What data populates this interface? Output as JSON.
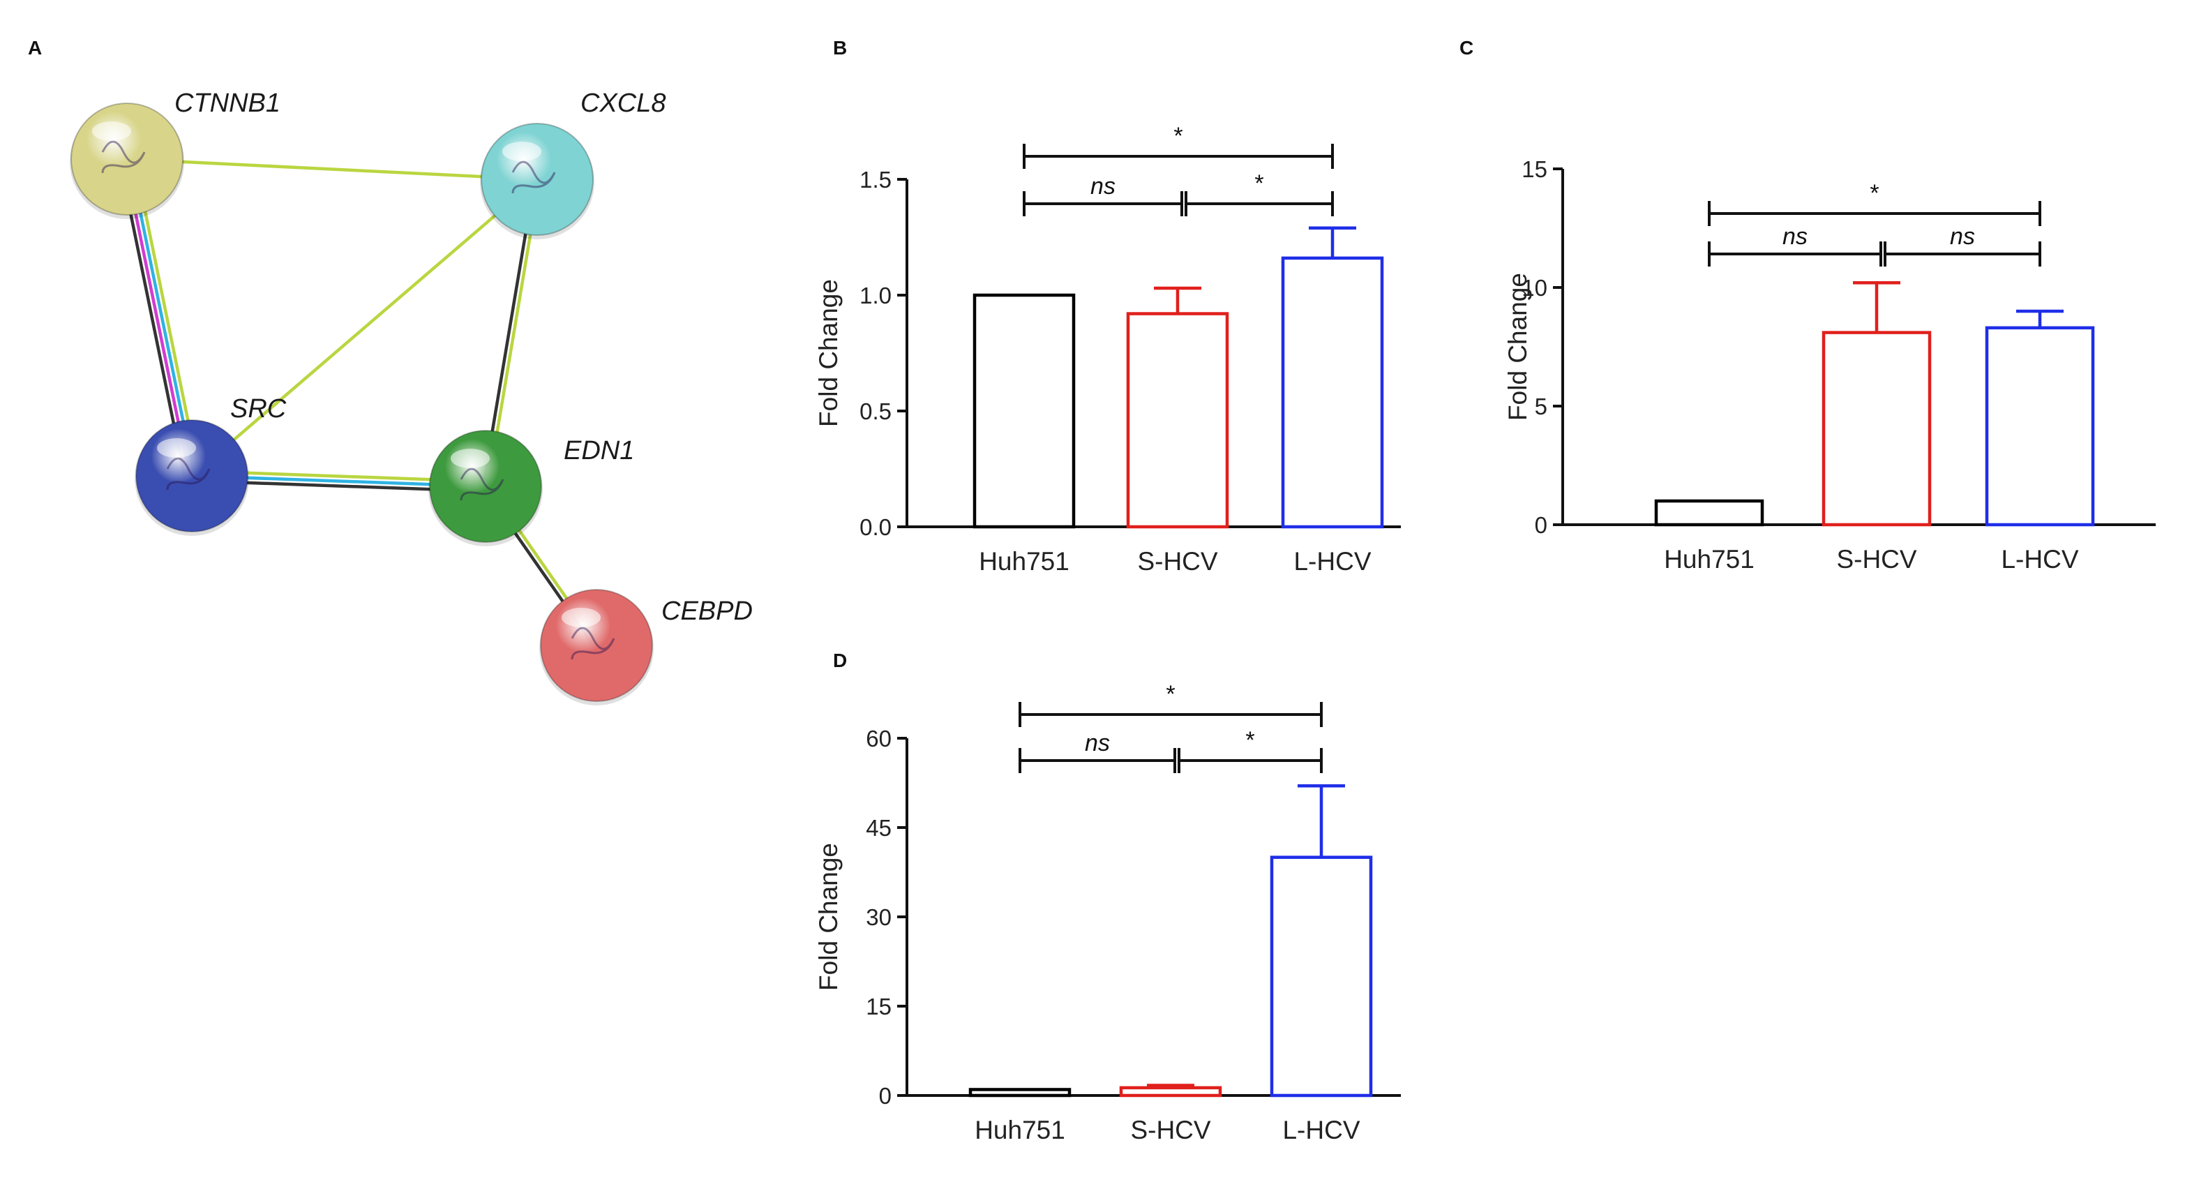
{
  "panels": {
    "a": {
      "letter": "A"
    },
    "b": {
      "letter": "B"
    },
    "c": {
      "letter": "C"
    },
    "d": {
      "letter": "D"
    }
  },
  "network": {
    "nodes": [
      {
        "id": "CTNNB1",
        "label": "CTNNB1",
        "color": "#d8d58a"
      },
      {
        "id": "CXCL8",
        "label": "CXCL8",
        "color": "#7fd3d3"
      },
      {
        "id": "SRC",
        "label": "SRC",
        "color": "#3a4db0"
      },
      {
        "id": "EDN1",
        "label": "EDN1",
        "color": "#3e9a3e"
      },
      {
        "id": "CEBPD",
        "label": "CEBPD",
        "color": "#e06a6a"
      }
    ],
    "edges": [
      {
        "from": "CTNNB1",
        "to": "CXCL8",
        "colors": [
          "#b9d640"
        ]
      },
      {
        "from": "CXCL8",
        "to": "SRC",
        "colors": [
          "#b9d640"
        ]
      },
      {
        "from": "CTNNB1",
        "to": "SRC",
        "colors": [
          "#b9d640",
          "#2fb3e3",
          "#d13cd1",
          "#333333"
        ]
      },
      {
        "from": "CXCL8",
        "to": "EDN1",
        "colors": [
          "#b9d640",
          "#333333"
        ]
      },
      {
        "from": "SRC",
        "to": "EDN1",
        "colors": [
          "#b9d640",
          "#2fb3e3",
          "#333333"
        ]
      },
      {
        "from": "EDN1",
        "to": "CEBPD",
        "colors": [
          "#b9d640",
          "#333333"
        ]
      }
    ]
  },
  "chart_data": [
    {
      "panel": "B",
      "type": "bar",
      "categories": [
        "Huh751",
        "S-HCV",
        "L-HCV"
      ],
      "values": [
        1.0,
        0.92,
        1.16
      ],
      "errors": [
        0,
        0.11,
        0.13
      ],
      "colors": [
        "#000000",
        "#e0201c",
        "#1f2ee8"
      ],
      "ylabel": "Fold Change",
      "ylim": [
        0,
        1.5
      ],
      "yticks": [
        0.0,
        0.5,
        1.0,
        1.5
      ],
      "ytick_labels": [
        "0.0",
        "0.5",
        "1.0",
        "1.5"
      ],
      "significance": [
        {
          "from": 0,
          "to": 2,
          "label": "*",
          "level": 2
        },
        {
          "from": 0,
          "to": 1,
          "label": "ns",
          "level": 1
        },
        {
          "from": 1,
          "to": 2,
          "label": "*",
          "level": 1
        }
      ]
    },
    {
      "panel": "C",
      "type": "bar",
      "categories": [
        "Huh751",
        "S-HCV",
        "L-HCV"
      ],
      "values": [
        1.0,
        8.1,
        8.3
      ],
      "errors": [
        0,
        2.1,
        0.7
      ],
      "colors": [
        "#000000",
        "#e0201c",
        "#1f2ee8"
      ],
      "ylabel": "Fold Change",
      "ylim": [
        0,
        15
      ],
      "yticks": [
        0,
        5,
        10,
        15
      ],
      "ytick_labels": [
        "0",
        "5",
        "10",
        "15"
      ],
      "significance": [
        {
          "from": 0,
          "to": 2,
          "label": "*",
          "level": 2
        },
        {
          "from": 0,
          "to": 1,
          "label": "ns",
          "level": 1
        },
        {
          "from": 1,
          "to": 2,
          "label": "ns",
          "level": 1
        }
      ]
    },
    {
      "panel": "D",
      "type": "bar",
      "categories": [
        "Huh751",
        "S-HCV",
        "L-HCV"
      ],
      "values": [
        1.0,
        1.3,
        40
      ],
      "errors": [
        0,
        0.4,
        12
      ],
      "colors": [
        "#000000",
        "#e0201c",
        "#1f2ee8"
      ],
      "ylabel": "Fold Change",
      "ylim": [
        0,
        60
      ],
      "yticks": [
        0,
        15,
        30,
        45,
        60
      ],
      "ytick_labels": [
        "0",
        "15",
        "30",
        "45",
        "60"
      ],
      "significance": [
        {
          "from": 0,
          "to": 2,
          "label": "*",
          "level": 2
        },
        {
          "from": 0,
          "to": 1,
          "label": "ns",
          "level": 1
        },
        {
          "from": 1,
          "to": 2,
          "label": "*",
          "level": 1
        }
      ]
    }
  ]
}
